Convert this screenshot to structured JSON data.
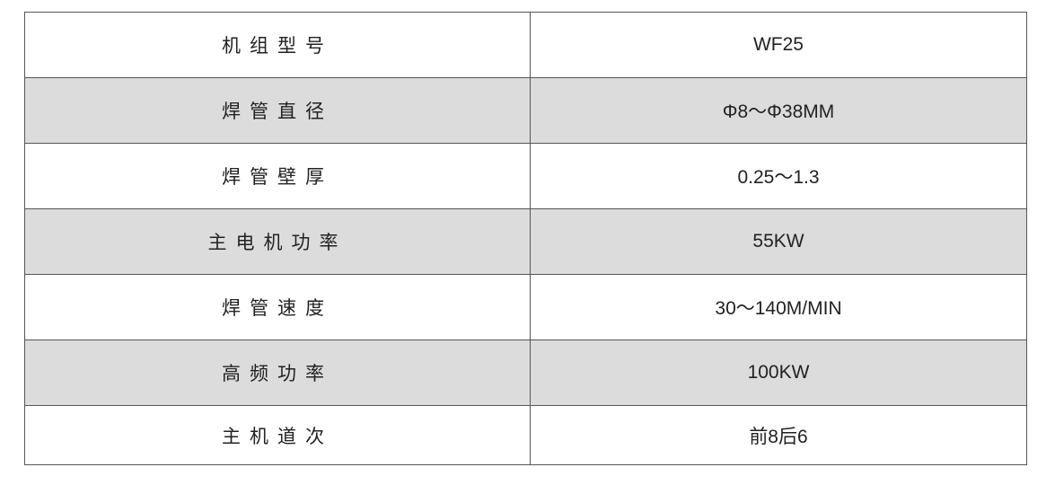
{
  "shade_color": "#dcdcdc",
  "rows": [
    {
      "label": "机组型号",
      "value": "WF25",
      "shaded": false
    },
    {
      "label": "焊管直径",
      "value": "Φ8～Φ38MM",
      "shaded": true
    },
    {
      "label": "焊管壁厚",
      "value": "0.25～1.3",
      "shaded": false
    },
    {
      "label": "主电机功率",
      "value": "55KW",
      "shaded": true
    },
    {
      "label": "焊管速度",
      "value": "30～140M/MIN",
      "shaded": false
    },
    {
      "label": "高频功率",
      "value": "100KW",
      "shaded": true
    },
    {
      "label": "主机道次",
      "value": "前8后6",
      "shaded": false
    }
  ]
}
